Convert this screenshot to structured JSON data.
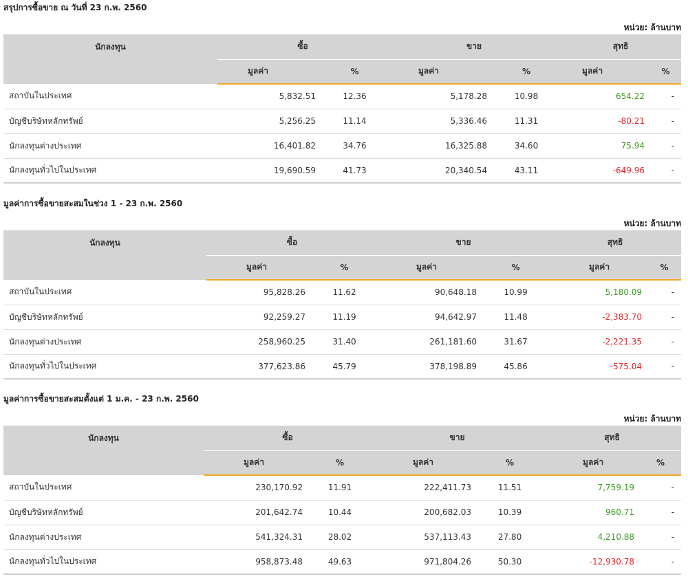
{
  "unit_label": "หน่วย: ล้านบาท",
  "headers": {
    "investor": "นักลงทุน",
    "buy": "ซื้อ",
    "sell": "ขาย",
    "net": "สุทธิ",
    "value": "มูลค่า",
    "pct": "%"
  },
  "colors": {
    "positive": "#3a9a1f",
    "negative": "#e0262b",
    "accent_border": "#f5a623",
    "header_bg": "#d4d4d4"
  },
  "sections": [
    {
      "title": "สรุปการซื้อขาย ณ วันที่ 23 ก.พ. 2560",
      "rows": [
        {
          "investor": "สถาบันในประเทศ",
          "buy_value": "5,832.51",
          "buy_pct": "12.36",
          "sell_value": "5,178.28",
          "sell_pct": "10.98",
          "net_value": "654.22",
          "net_pct": "-",
          "net_sign": "pos"
        },
        {
          "investor": "บัญชีบริษัทหลักทรัพย์",
          "buy_value": "5,256.25",
          "buy_pct": "11.14",
          "sell_value": "5,336.46",
          "sell_pct": "11.31",
          "net_value": "-80.21",
          "net_pct": "-",
          "net_sign": "neg"
        },
        {
          "investor": "นักลงทุนต่างประเทศ",
          "buy_value": "16,401.82",
          "buy_pct": "34.76",
          "sell_value": "16,325.88",
          "sell_pct": "34.60",
          "net_value": "75.94",
          "net_pct": "-",
          "net_sign": "pos"
        },
        {
          "investor": "นักลงทุนทั่วไปในประเทศ",
          "buy_value": "19,690.59",
          "buy_pct": "41.73",
          "sell_value": "20,340.54",
          "sell_pct": "43.11",
          "net_value": "-649.96",
          "net_pct": "-",
          "net_sign": "neg"
        }
      ]
    },
    {
      "title": "มูลค่าการซื้อขายสะสมในช่วง 1 - 23 ก.พ. 2560",
      "rows": [
        {
          "investor": "สถาบันในประเทศ",
          "buy_value": "95,828.26",
          "buy_pct": "11.62",
          "sell_value": "90,648.18",
          "sell_pct": "10.99",
          "net_value": "5,180.09",
          "net_pct": "-",
          "net_sign": "pos"
        },
        {
          "investor": "บัญชีบริษัทหลักทรัพย์",
          "buy_value": "92,259.27",
          "buy_pct": "11.19",
          "sell_value": "94,642.97",
          "sell_pct": "11.48",
          "net_value": "-2,383.70",
          "net_pct": "-",
          "net_sign": "neg"
        },
        {
          "investor": "นักลงทุนต่างประเทศ",
          "buy_value": "258,960.25",
          "buy_pct": "31.40",
          "sell_value": "261,181.60",
          "sell_pct": "31.67",
          "net_value": "-2,221.35",
          "net_pct": "-",
          "net_sign": "neg"
        },
        {
          "investor": "นักลงทุนทั่วไปในประเทศ",
          "buy_value": "377,623.86",
          "buy_pct": "45.79",
          "sell_value": "378,198.89",
          "sell_pct": "45.86",
          "net_value": "-575.04",
          "net_pct": "-",
          "net_sign": "neg"
        }
      ]
    },
    {
      "title": "มูลค่าการซื้อขายสะสมตั้งแต่ 1 ม.ค. - 23 ก.พ. 2560",
      "rows": [
        {
          "investor": "สถาบันในประเทศ",
          "buy_value": "230,170.92",
          "buy_pct": "11.91",
          "sell_value": "222,411.73",
          "sell_pct": "11.51",
          "net_value": "7,759.19",
          "net_pct": "-",
          "net_sign": "pos"
        },
        {
          "investor": "บัญชีบริษัทหลักทรัพย์",
          "buy_value": "201,642.74",
          "buy_pct": "10.44",
          "sell_value": "200,682.03",
          "sell_pct": "10.39",
          "net_value": "960.71",
          "net_pct": "-",
          "net_sign": "pos"
        },
        {
          "investor": "นักลงทุนต่างประเทศ",
          "buy_value": "541,324.31",
          "buy_pct": "28.02",
          "sell_value": "537,113.43",
          "sell_pct": "27.80",
          "net_value": "4,210.88",
          "net_pct": "-",
          "net_sign": "pos"
        },
        {
          "investor": "นักลงทุนทั่วไปในประเทศ",
          "buy_value": "958,873.48",
          "buy_pct": "49.63",
          "sell_value": "971,804.26",
          "sell_pct": "50.30",
          "net_value": "-12,930.78",
          "net_pct": "-",
          "net_sign": "neg"
        }
      ]
    }
  ]
}
